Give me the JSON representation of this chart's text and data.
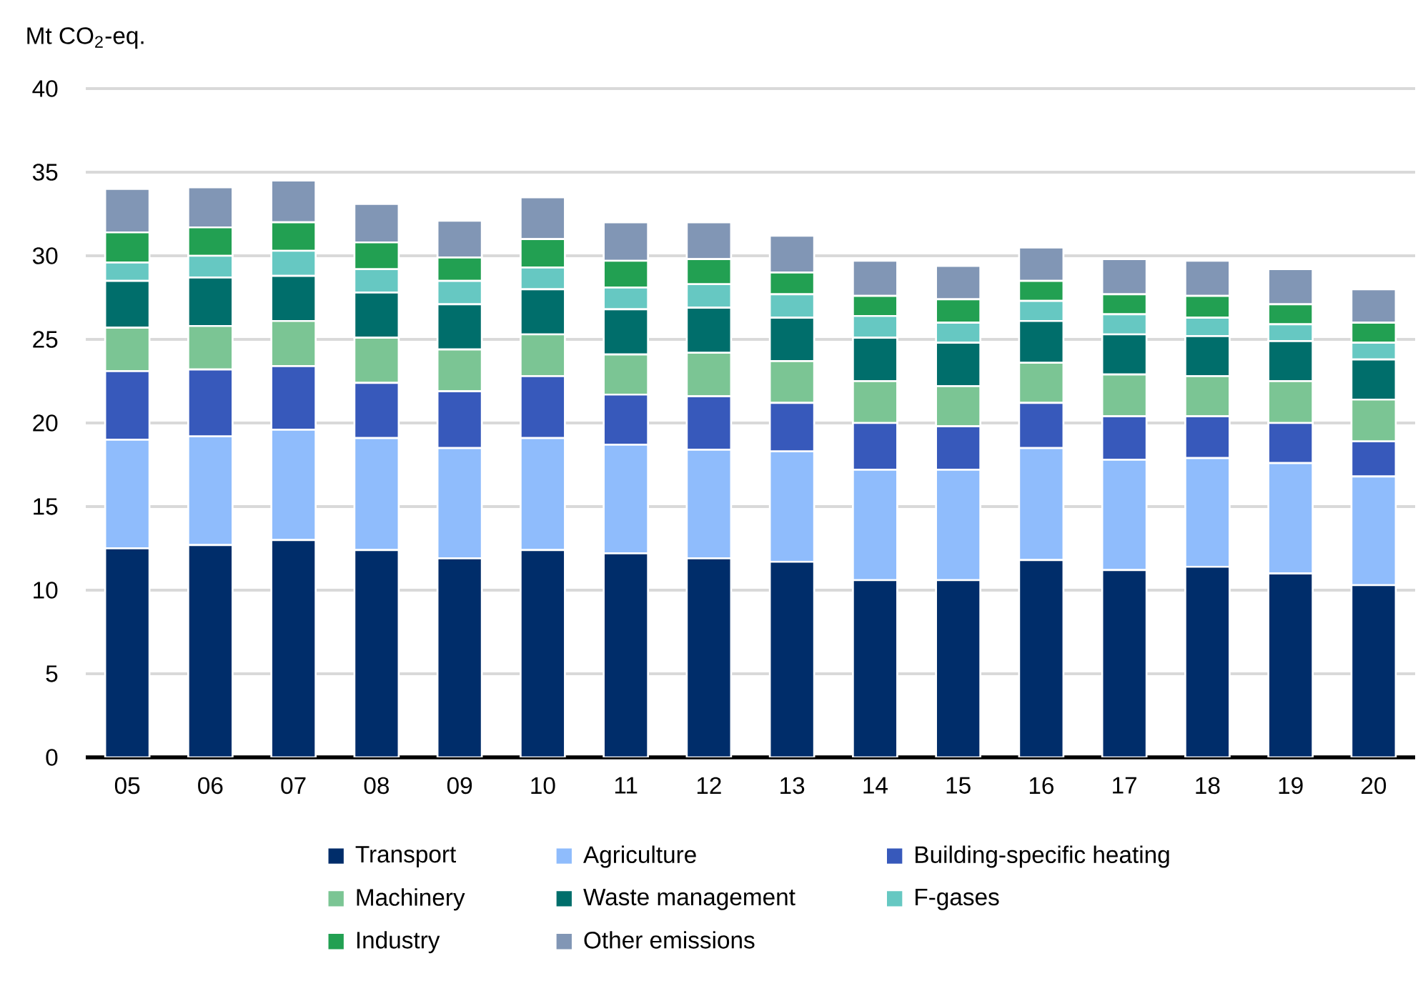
{
  "chart_data": {
    "type": "bar",
    "stacked": true,
    "ylabel": "Mt CO$_{2}$-eq.",
    "categories": [
      "05",
      "06",
      "07",
      "08",
      "09",
      "10",
      "11",
      "12",
      "13",
      "14",
      "15",
      "16",
      "17",
      "18",
      "19",
      "20"
    ],
    "ylim": [
      0,
      40
    ],
    "yticks": [
      0,
      5,
      10,
      15,
      20,
      25,
      30,
      35,
      40
    ],
    "grid": "y",
    "legend": "bottom",
    "series": [
      {
        "name": "Transport",
        "color": "#002d6a",
        "values": [
          12.5,
          12.7,
          13.0,
          12.4,
          11.9,
          12.4,
          12.2,
          11.9,
          11.7,
          10.6,
          10.6,
          11.8,
          11.2,
          11.4,
          11.0,
          10.3
        ]
      },
      {
        "name": "Agriculture",
        "color": "#8fbcfc",
        "values": [
          6.5,
          6.5,
          6.6,
          6.7,
          6.6,
          6.7,
          6.5,
          6.5,
          6.6,
          6.6,
          6.6,
          6.7,
          6.6,
          6.5,
          6.6,
          6.5
        ]
      },
      {
        "name": "Building-specific heating",
        "color": "#3759bb",
        "values": [
          4.1,
          4.0,
          3.8,
          3.3,
          3.4,
          3.7,
          3.0,
          3.2,
          2.9,
          2.8,
          2.6,
          2.7,
          2.6,
          2.5,
          2.4,
          2.1
        ]
      },
      {
        "name": "Machinery",
        "color": "#7bc594",
        "values": [
          2.6,
          2.6,
          2.7,
          2.7,
          2.5,
          2.5,
          2.4,
          2.6,
          2.5,
          2.5,
          2.4,
          2.4,
          2.5,
          2.4,
          2.5,
          2.5
        ]
      },
      {
        "name": "Waste management",
        "color": "#006e6b",
        "values": [
          2.8,
          2.9,
          2.7,
          2.7,
          2.7,
          2.7,
          2.7,
          2.7,
          2.6,
          2.6,
          2.6,
          2.5,
          2.4,
          2.4,
          2.4,
          2.4
        ]
      },
      {
        "name": "F-gases",
        "color": "#66c8c2",
        "values": [
          1.1,
          1.3,
          1.5,
          1.4,
          1.4,
          1.3,
          1.3,
          1.4,
          1.4,
          1.3,
          1.2,
          1.2,
          1.2,
          1.1,
          1.0,
          1.0
        ]
      },
      {
        "name": "Industry",
        "color": "#22a052",
        "values": [
          1.8,
          1.7,
          1.7,
          1.6,
          1.4,
          1.7,
          1.6,
          1.5,
          1.3,
          1.2,
          1.4,
          1.2,
          1.2,
          1.3,
          1.2,
          1.2
        ]
      },
      {
        "name": "Other emissions",
        "color": "#8196b5",
        "values": [
          2.6,
          2.4,
          2.5,
          2.3,
          2.2,
          2.5,
          2.3,
          2.2,
          2.2,
          2.1,
          2.0,
          2.0,
          2.1,
          2.1,
          2.1,
          2.0
        ]
      }
    ]
  }
}
